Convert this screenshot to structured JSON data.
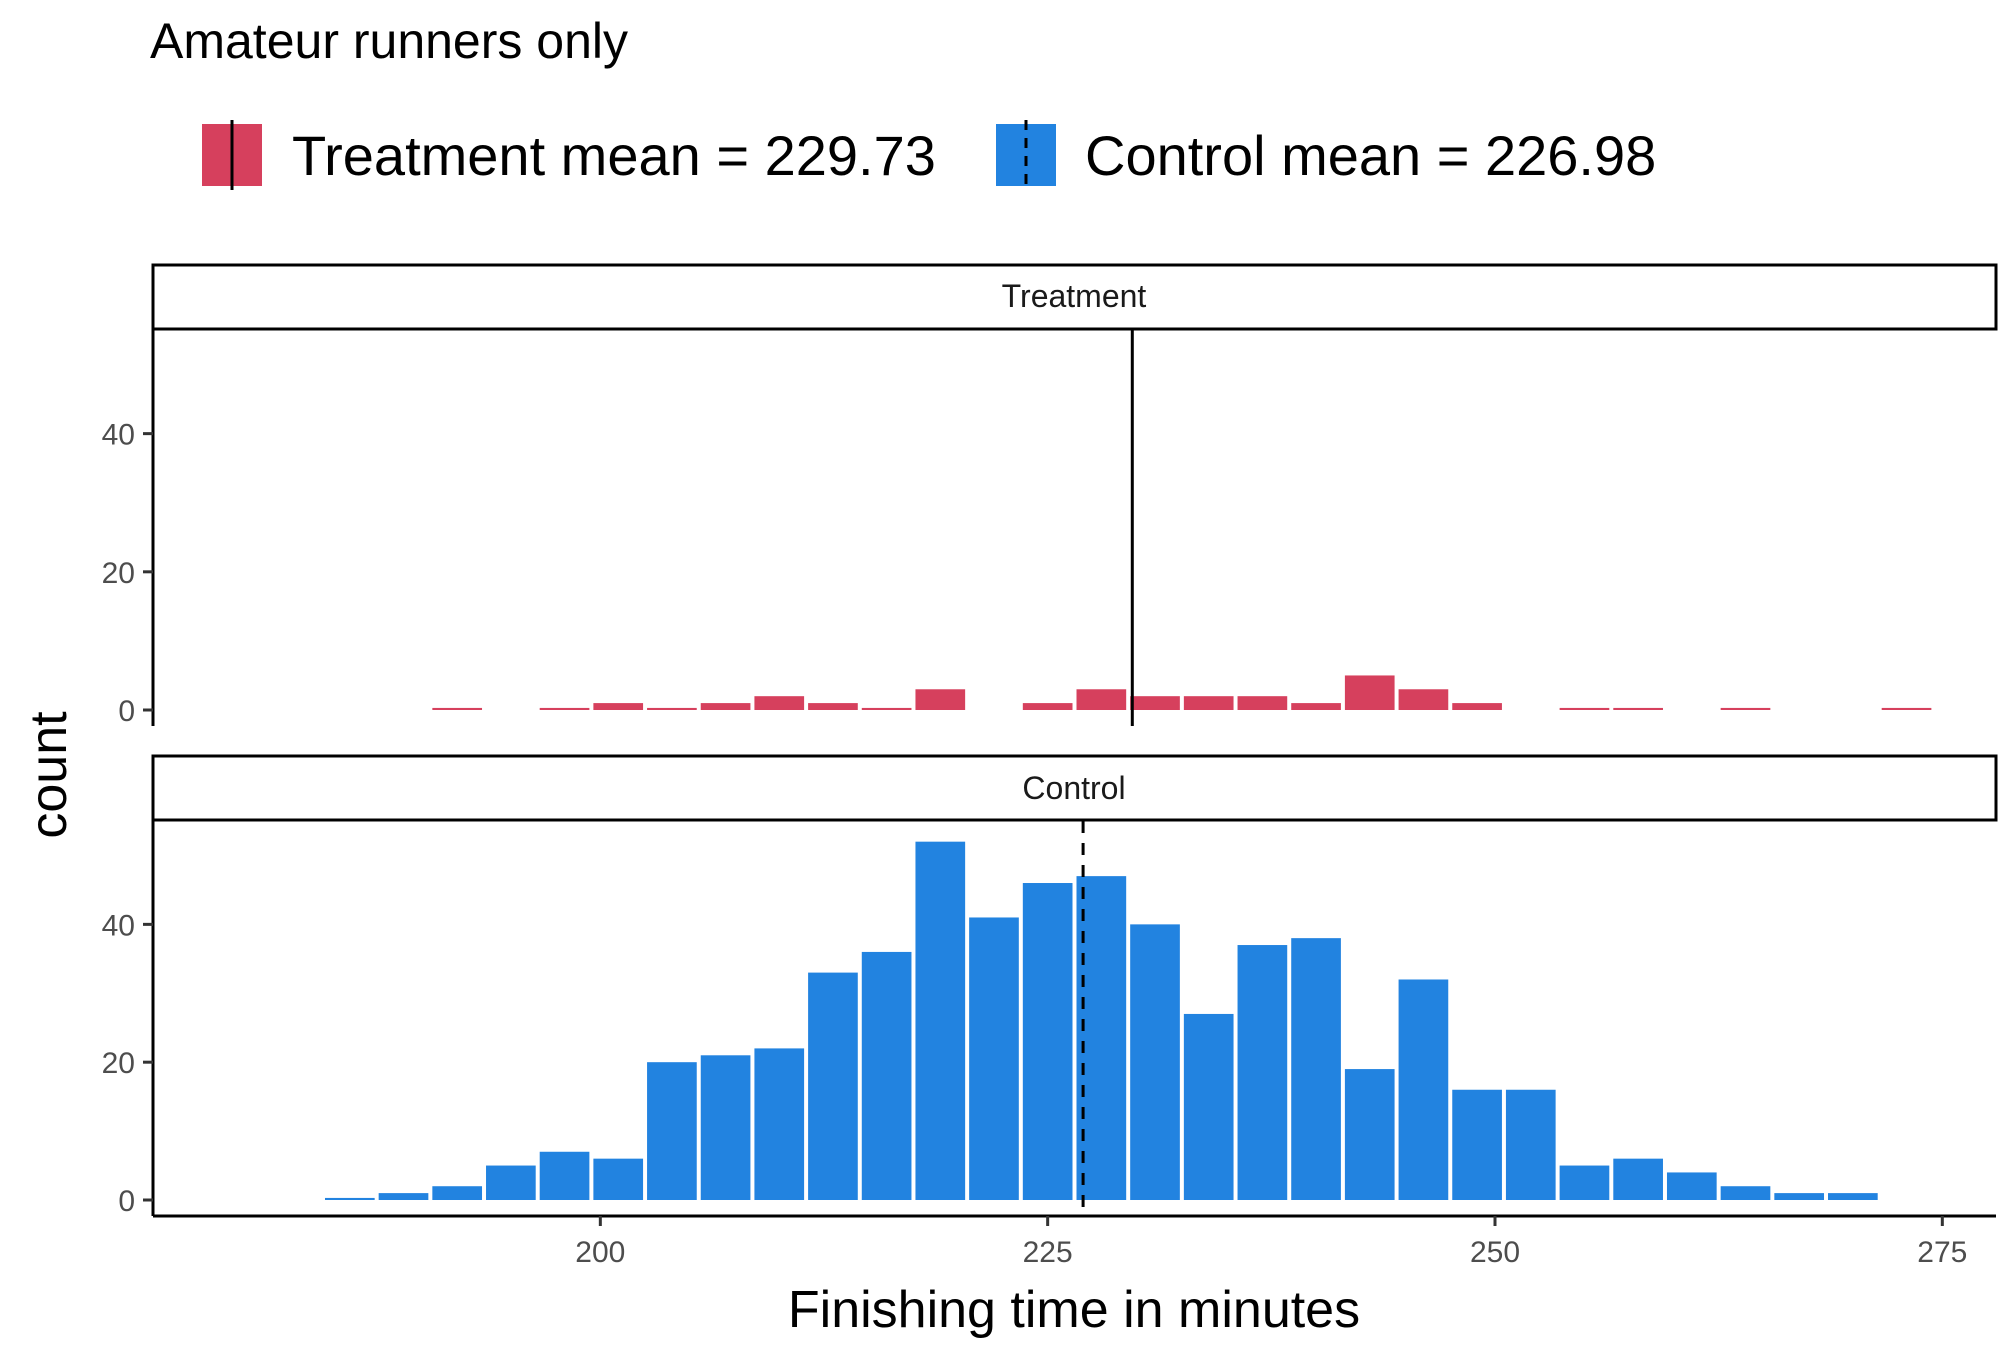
{
  "title": "Amateur runners only",
  "chart_data": {
    "type": "bar",
    "title": "Amateur runners only",
    "xlabel": "Finishing time in minutes",
    "ylabel": "count",
    "xlim": [
      175,
      278
    ],
    "ylim": [
      0,
      55
    ],
    "x_ticks": [
      200,
      225,
      250,
      275
    ],
    "y_ticks": [
      0,
      20,
      40
    ],
    "bin_width": 3,
    "grid": false,
    "legend": {
      "position": "top",
      "entries": [
        {
          "label": "Treatment mean = 229.73",
          "color": "#d6405d",
          "line": "solid"
        },
        {
          "label": "Control mean = 226.98",
          "color": "#2283e0",
          "line": "dashed"
        }
      ]
    },
    "series": [
      {
        "name": "Treatment",
        "color": "#d6405d",
        "mean": 229.73,
        "line": "solid",
        "bins": [
          {
            "x": 192,
            "count": 0.3
          },
          {
            "x": 198,
            "count": 0.3
          },
          {
            "x": 201,
            "count": 1
          },
          {
            "x": 204,
            "count": 0.3
          },
          {
            "x": 207,
            "count": 1
          },
          {
            "x": 210,
            "count": 2
          },
          {
            "x": 213,
            "count": 1
          },
          {
            "x": 216,
            "count": 0.3
          },
          {
            "x": 219,
            "count": 3
          },
          {
            "x": 225,
            "count": 1
          },
          {
            "x": 228,
            "count": 3
          },
          {
            "x": 231,
            "count": 2
          },
          {
            "x": 234,
            "count": 2
          },
          {
            "x": 237,
            "count": 2
          },
          {
            "x": 240,
            "count": 1
          },
          {
            "x": 243,
            "count": 5
          },
          {
            "x": 246,
            "count": 3
          },
          {
            "x": 249,
            "count": 1
          },
          {
            "x": 255,
            "count": 0.3
          },
          {
            "x": 258,
            "count": 0.3
          },
          {
            "x": 264,
            "count": 0.3
          },
          {
            "x": 273,
            "count": 0.3
          }
        ]
      },
      {
        "name": "Control",
        "color": "#2283e0",
        "mean": 226.98,
        "line": "dashed",
        "bins": [
          {
            "x": 186,
            "count": 0.3
          },
          {
            "x": 189,
            "count": 1
          },
          {
            "x": 192,
            "count": 2
          },
          {
            "x": 195,
            "count": 5
          },
          {
            "x": 198,
            "count": 7
          },
          {
            "x": 201,
            "count": 6
          },
          {
            "x": 204,
            "count": 20
          },
          {
            "x": 207,
            "count": 21
          },
          {
            "x": 210,
            "count": 22
          },
          {
            "x": 213,
            "count": 33
          },
          {
            "x": 216,
            "count": 36
          },
          {
            "x": 219,
            "count": 52
          },
          {
            "x": 222,
            "count": 41
          },
          {
            "x": 225,
            "count": 46
          },
          {
            "x": 228,
            "count": 47
          },
          {
            "x": 231,
            "count": 40
          },
          {
            "x": 234,
            "count": 27
          },
          {
            "x": 237,
            "count": 37
          },
          {
            "x": 240,
            "count": 38
          },
          {
            "x": 243,
            "count": 19
          },
          {
            "x": 246,
            "count": 32
          },
          {
            "x": 249,
            "count": 16
          },
          {
            "x": 252,
            "count": 16
          },
          {
            "x": 255,
            "count": 5
          },
          {
            "x": 258,
            "count": 6
          },
          {
            "x": 261,
            "count": 4
          },
          {
            "x": 264,
            "count": 2
          },
          {
            "x": 267,
            "count": 1
          },
          {
            "x": 270,
            "count": 1
          }
        ]
      }
    ]
  }
}
